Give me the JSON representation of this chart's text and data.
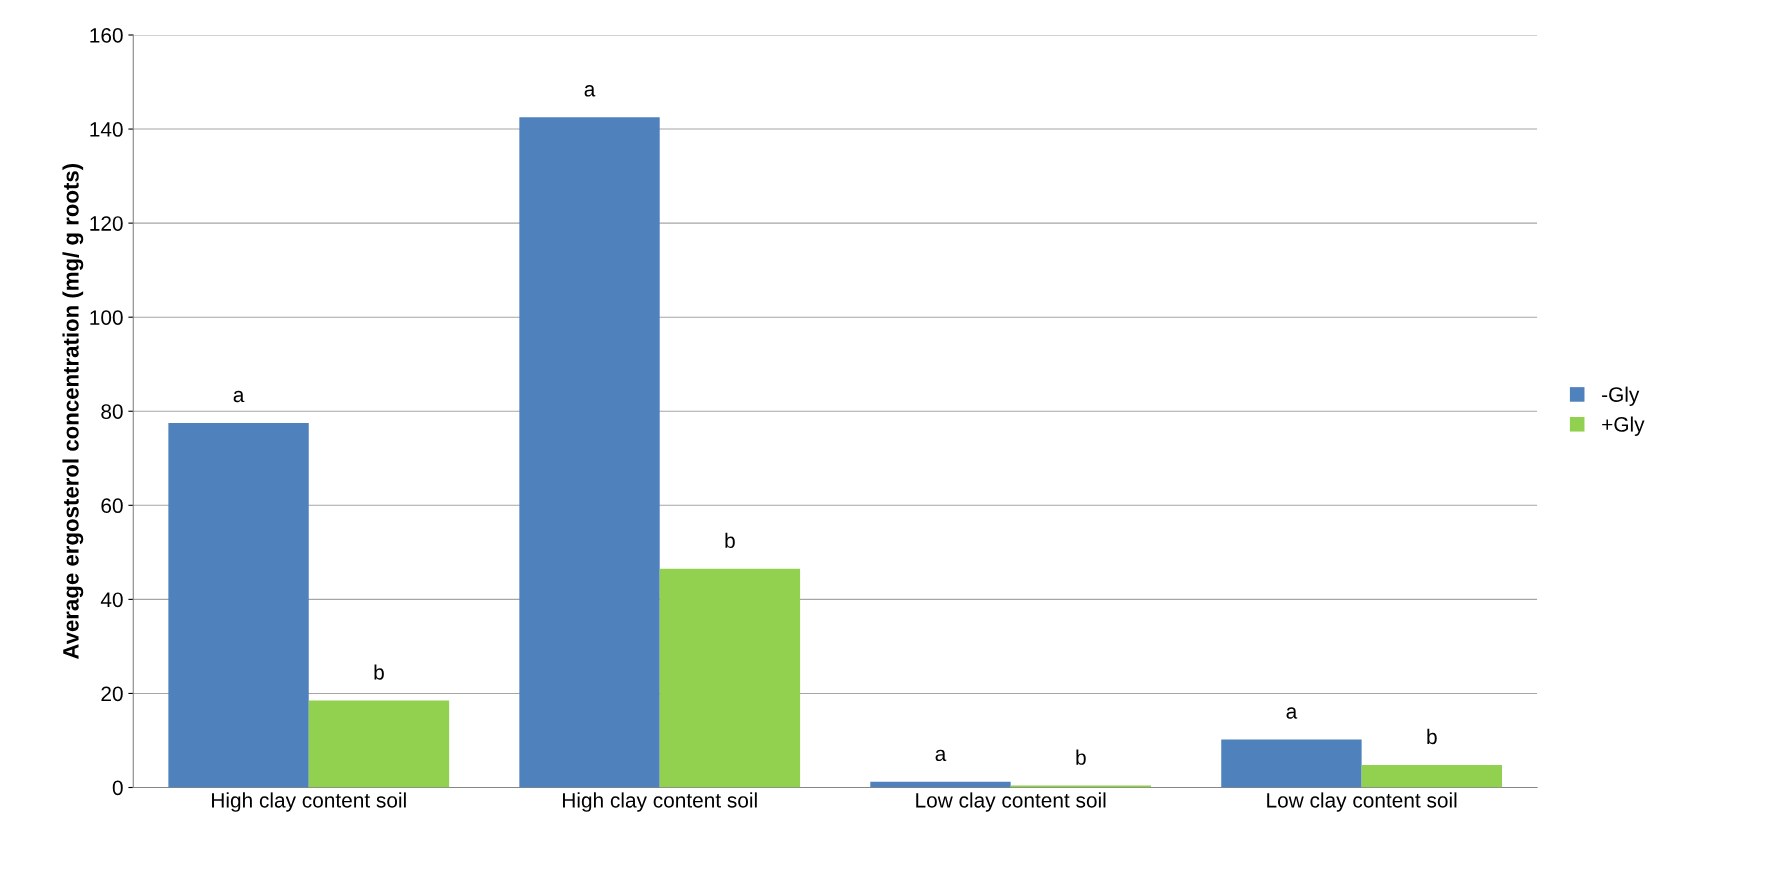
{
  "chart_data": {
    "type": "bar",
    "ylabel": "Average ergosterol concentration (mg/ g roots)",
    "categories": [
      "High clay content soil",
      "High clay content soil",
      "Low clay content soil",
      "Low clay content soil"
    ],
    "series": [
      {
        "name": "-Gly",
        "color": "#4f81bd",
        "values": [
          77.5,
          142.5,
          1.2,
          10.2
        ],
        "value_labels": [
          "a",
          "a",
          "a",
          "a"
        ]
      },
      {
        "name": "+Gly",
        "color": "#92d050",
        "values": [
          18.5,
          46.5,
          0.4,
          4.8
        ],
        "value_labels": [
          "b",
          "b",
          "b",
          "b"
        ]
      }
    ],
    "ylim": [
      0,
      160
    ],
    "yticks": [
      0,
      20,
      40,
      60,
      80,
      100,
      120,
      140,
      160
    ],
    "grid": "y",
    "legend": "right"
  }
}
